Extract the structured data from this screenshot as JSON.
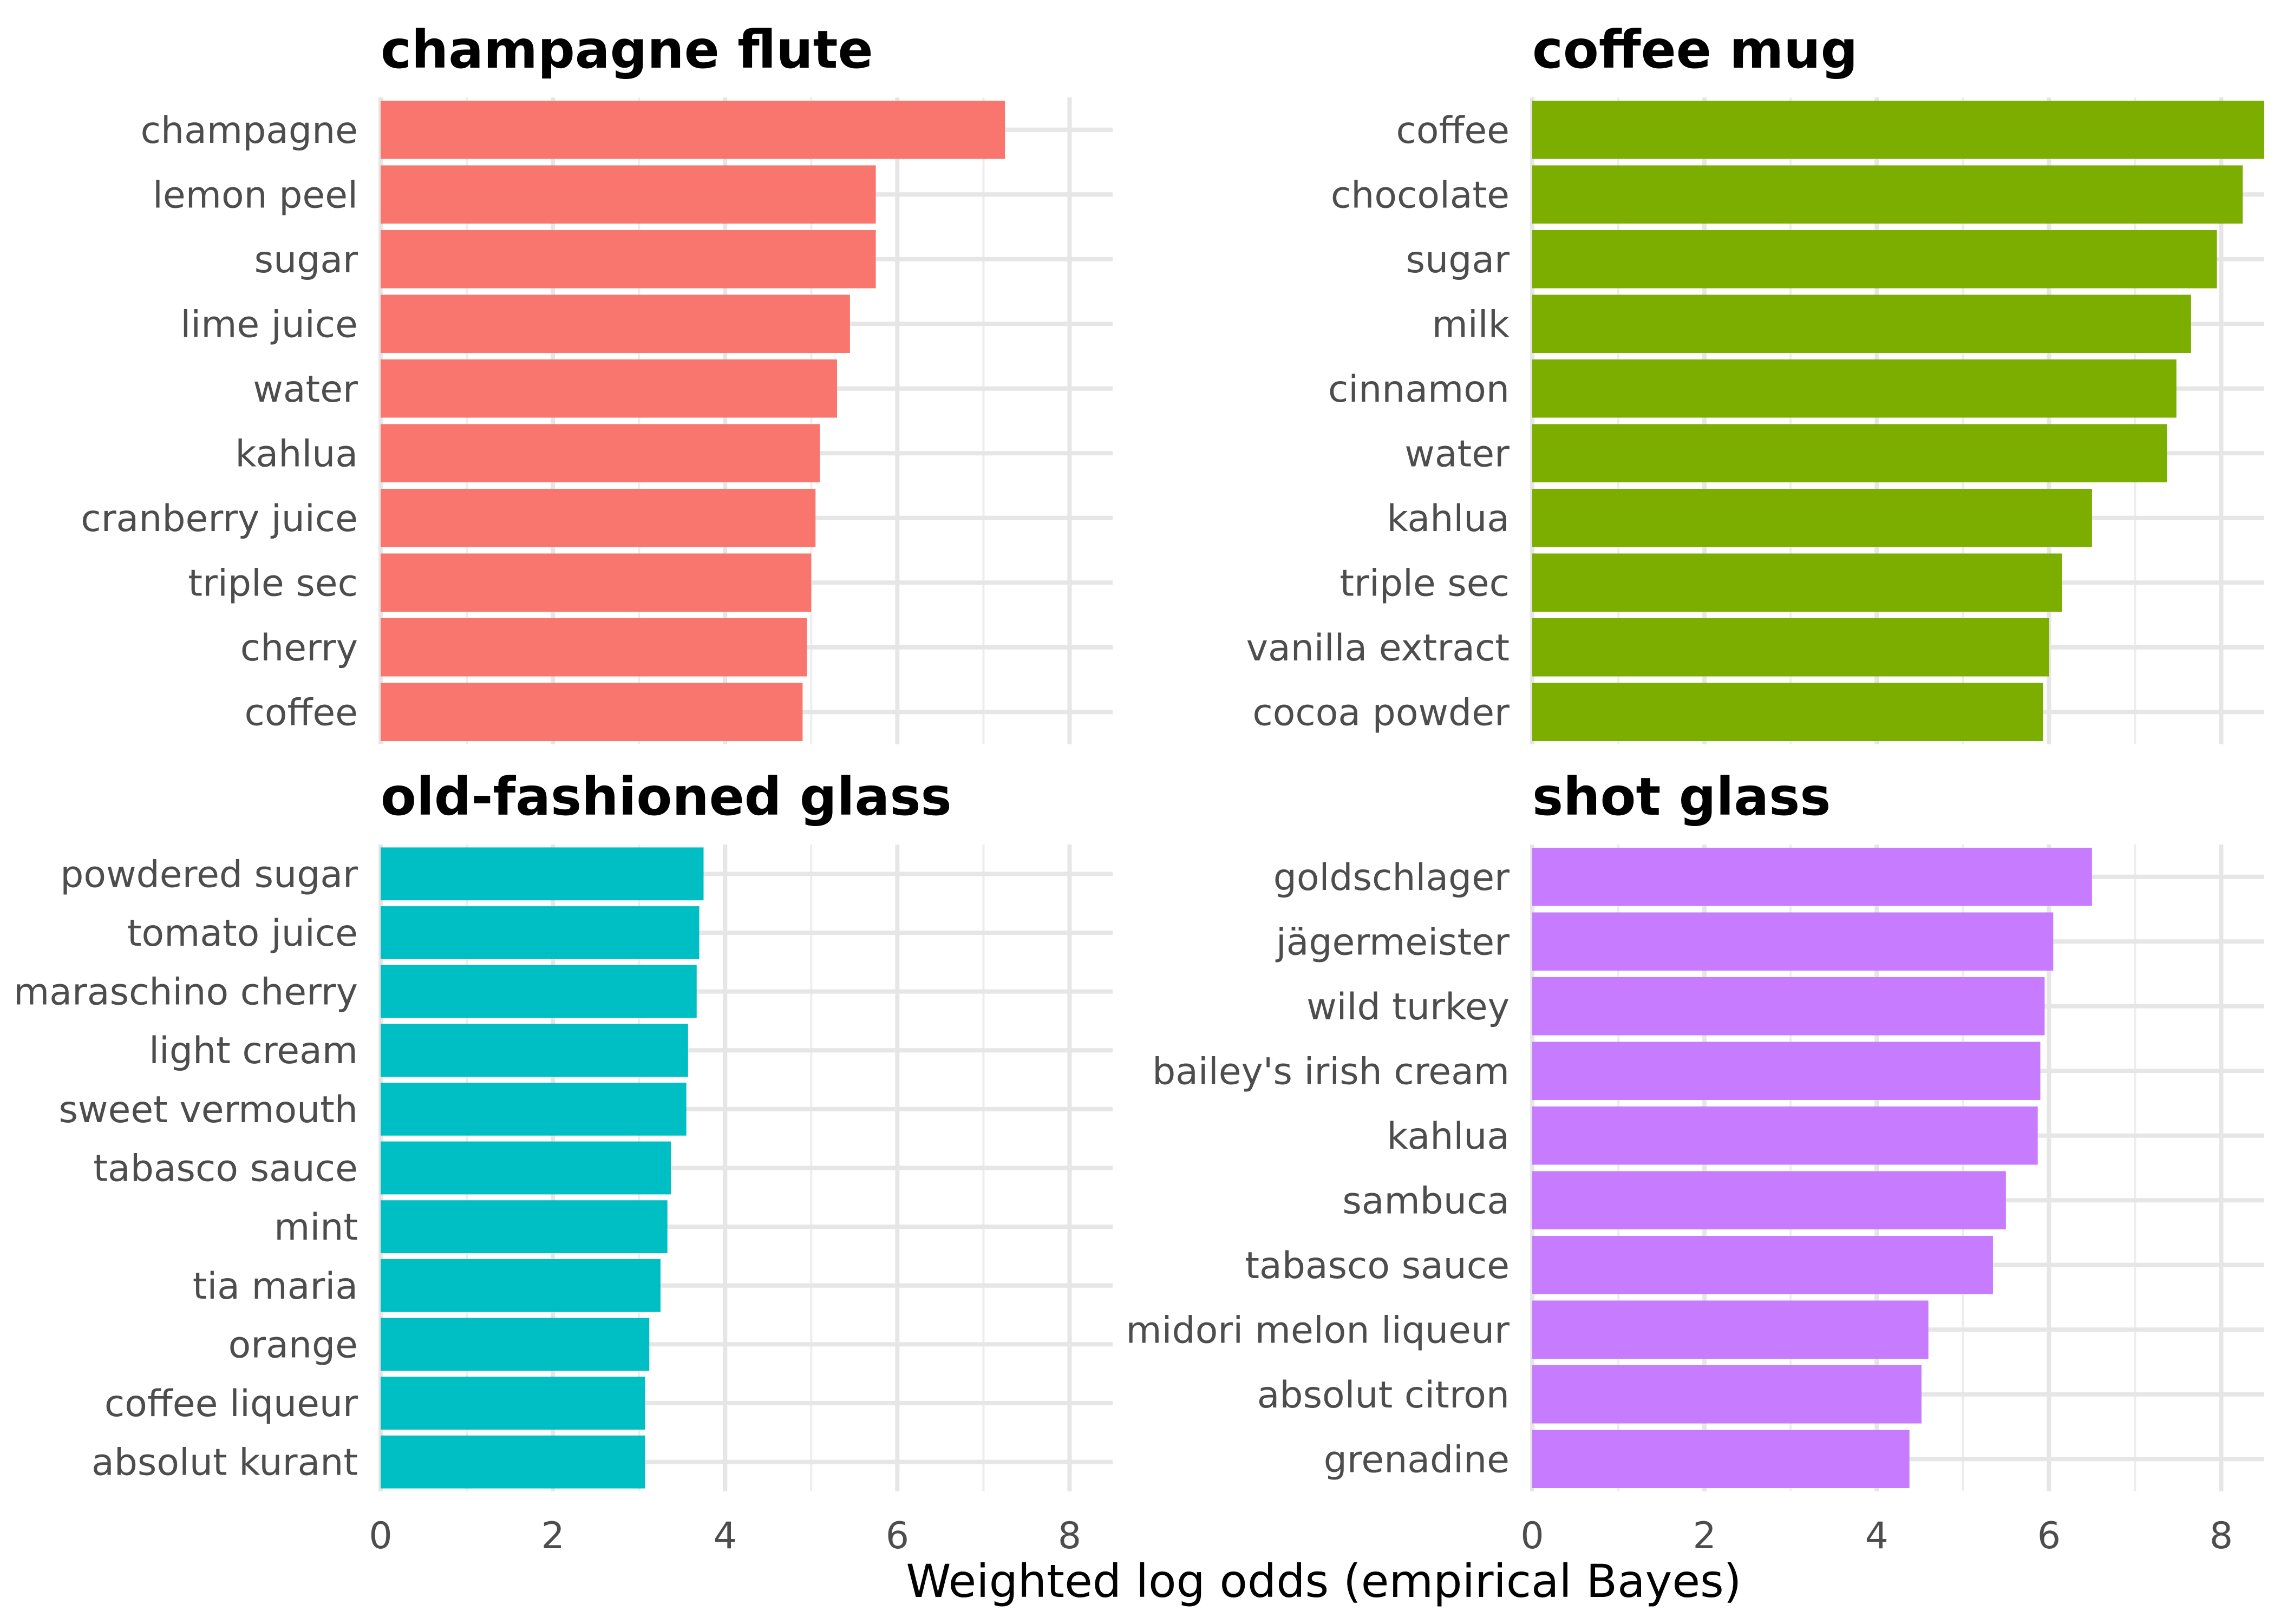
{
  "chart_data": {
    "type": "bar",
    "orientation": "horizontal",
    "xlabel": "Weighted log odds (empirical Bayes)",
    "xlim": [
      0,
      8.5
    ],
    "x_ticks": [
      "0",
      "2",
      "4",
      "6",
      "8"
    ],
    "grid": true,
    "legend": "none",
    "facets": [
      {
        "title": "champagne flute",
        "color": "#F8766D",
        "categories": [
          "champagne",
          "lemon peel",
          "sugar",
          "lime juice",
          "water",
          "kahlua",
          "cranberry juice",
          "triple sec",
          "cherry",
          "coffee"
        ],
        "values": [
          7.25,
          5.75,
          5.75,
          5.45,
          5.3,
          5.1,
          5.05,
          5.0,
          4.95,
          4.9
        ]
      },
      {
        "title": "coffee mug",
        "color": "#7CAE00",
        "categories": [
          "coffee",
          "chocolate",
          "sugar",
          "milk",
          "cinnamon",
          "water",
          "kahlua",
          "triple sec",
          "vanilla extract",
          "cocoa powder"
        ],
        "values": [
          8.5,
          8.25,
          7.95,
          7.65,
          7.48,
          7.37,
          6.5,
          6.15,
          6.0,
          5.93
        ]
      },
      {
        "title": "old-fashioned glass",
        "color": "#00BFC4",
        "categories": [
          "powdered sugar",
          "tomato juice",
          "maraschino cherry",
          "light cream",
          "sweet vermouth",
          "tabasco sauce",
          "mint",
          "tia maria",
          "orange",
          "coffee liqueur",
          "absolut kurant"
        ],
        "values": [
          3.75,
          3.7,
          3.67,
          3.57,
          3.55,
          3.37,
          3.33,
          3.25,
          3.12,
          3.07,
          3.07
        ]
      },
      {
        "title": "shot glass",
        "color": "#C77CFF",
        "categories": [
          "goldschlager",
          "jägermeister",
          "wild turkey",
          "bailey's irish cream",
          "kahlua",
          "sambuca",
          "tabasco sauce",
          "midori melon liqueur",
          "absolut citron",
          "grenadine"
        ],
        "values": [
          6.5,
          6.05,
          5.95,
          5.9,
          5.87,
          5.5,
          5.35,
          4.6,
          4.52,
          4.38
        ]
      }
    ]
  }
}
